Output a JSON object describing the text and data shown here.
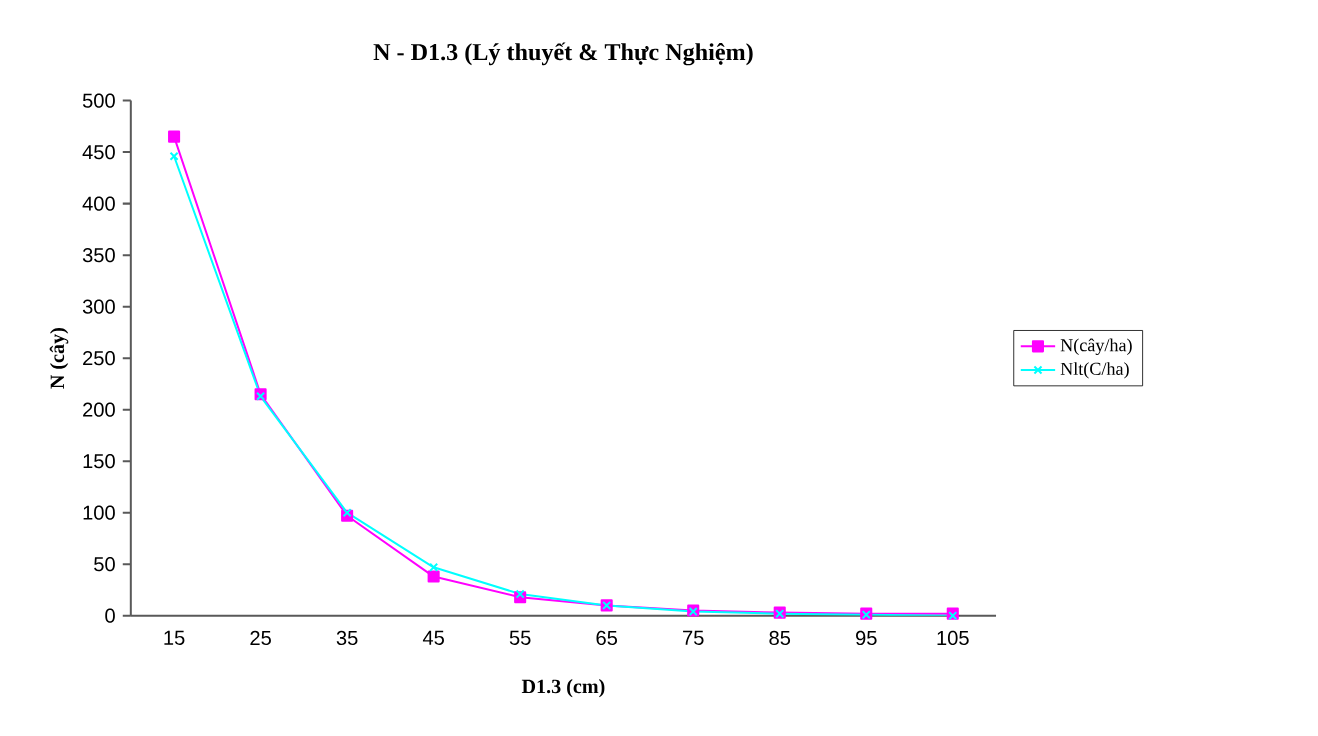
{
  "chart_data": {
    "type": "line",
    "title": "N - D1.3 (Lý thuyết & Thực Nghiệm)",
    "xlabel": "D1.3 (cm)",
    "ylabel": "N (cây)",
    "categories": [
      "15",
      "25",
      "35",
      "45",
      "55",
      "65",
      "75",
      "85",
      "95",
      "105"
    ],
    "series": [
      {
        "name": "N(cây/ha)",
        "color": "#ff00ff",
        "marker": "square",
        "values": [
          465,
          215,
          97,
          38,
          18,
          10,
          5,
          3,
          2,
          2
        ]
      },
      {
        "name": "Nlt(C/ha)",
        "color": "#00ffff",
        "marker": "cross",
        "values": [
          446,
          213,
          100,
          47,
          21,
          10,
          4,
          2,
          1,
          0
        ]
      }
    ],
    "ylim": [
      0,
      500
    ],
    "yticks": [
      0,
      50,
      100,
      150,
      200,
      250,
      300,
      350,
      400,
      450,
      500
    ],
    "grid": false,
    "legend": "right"
  }
}
